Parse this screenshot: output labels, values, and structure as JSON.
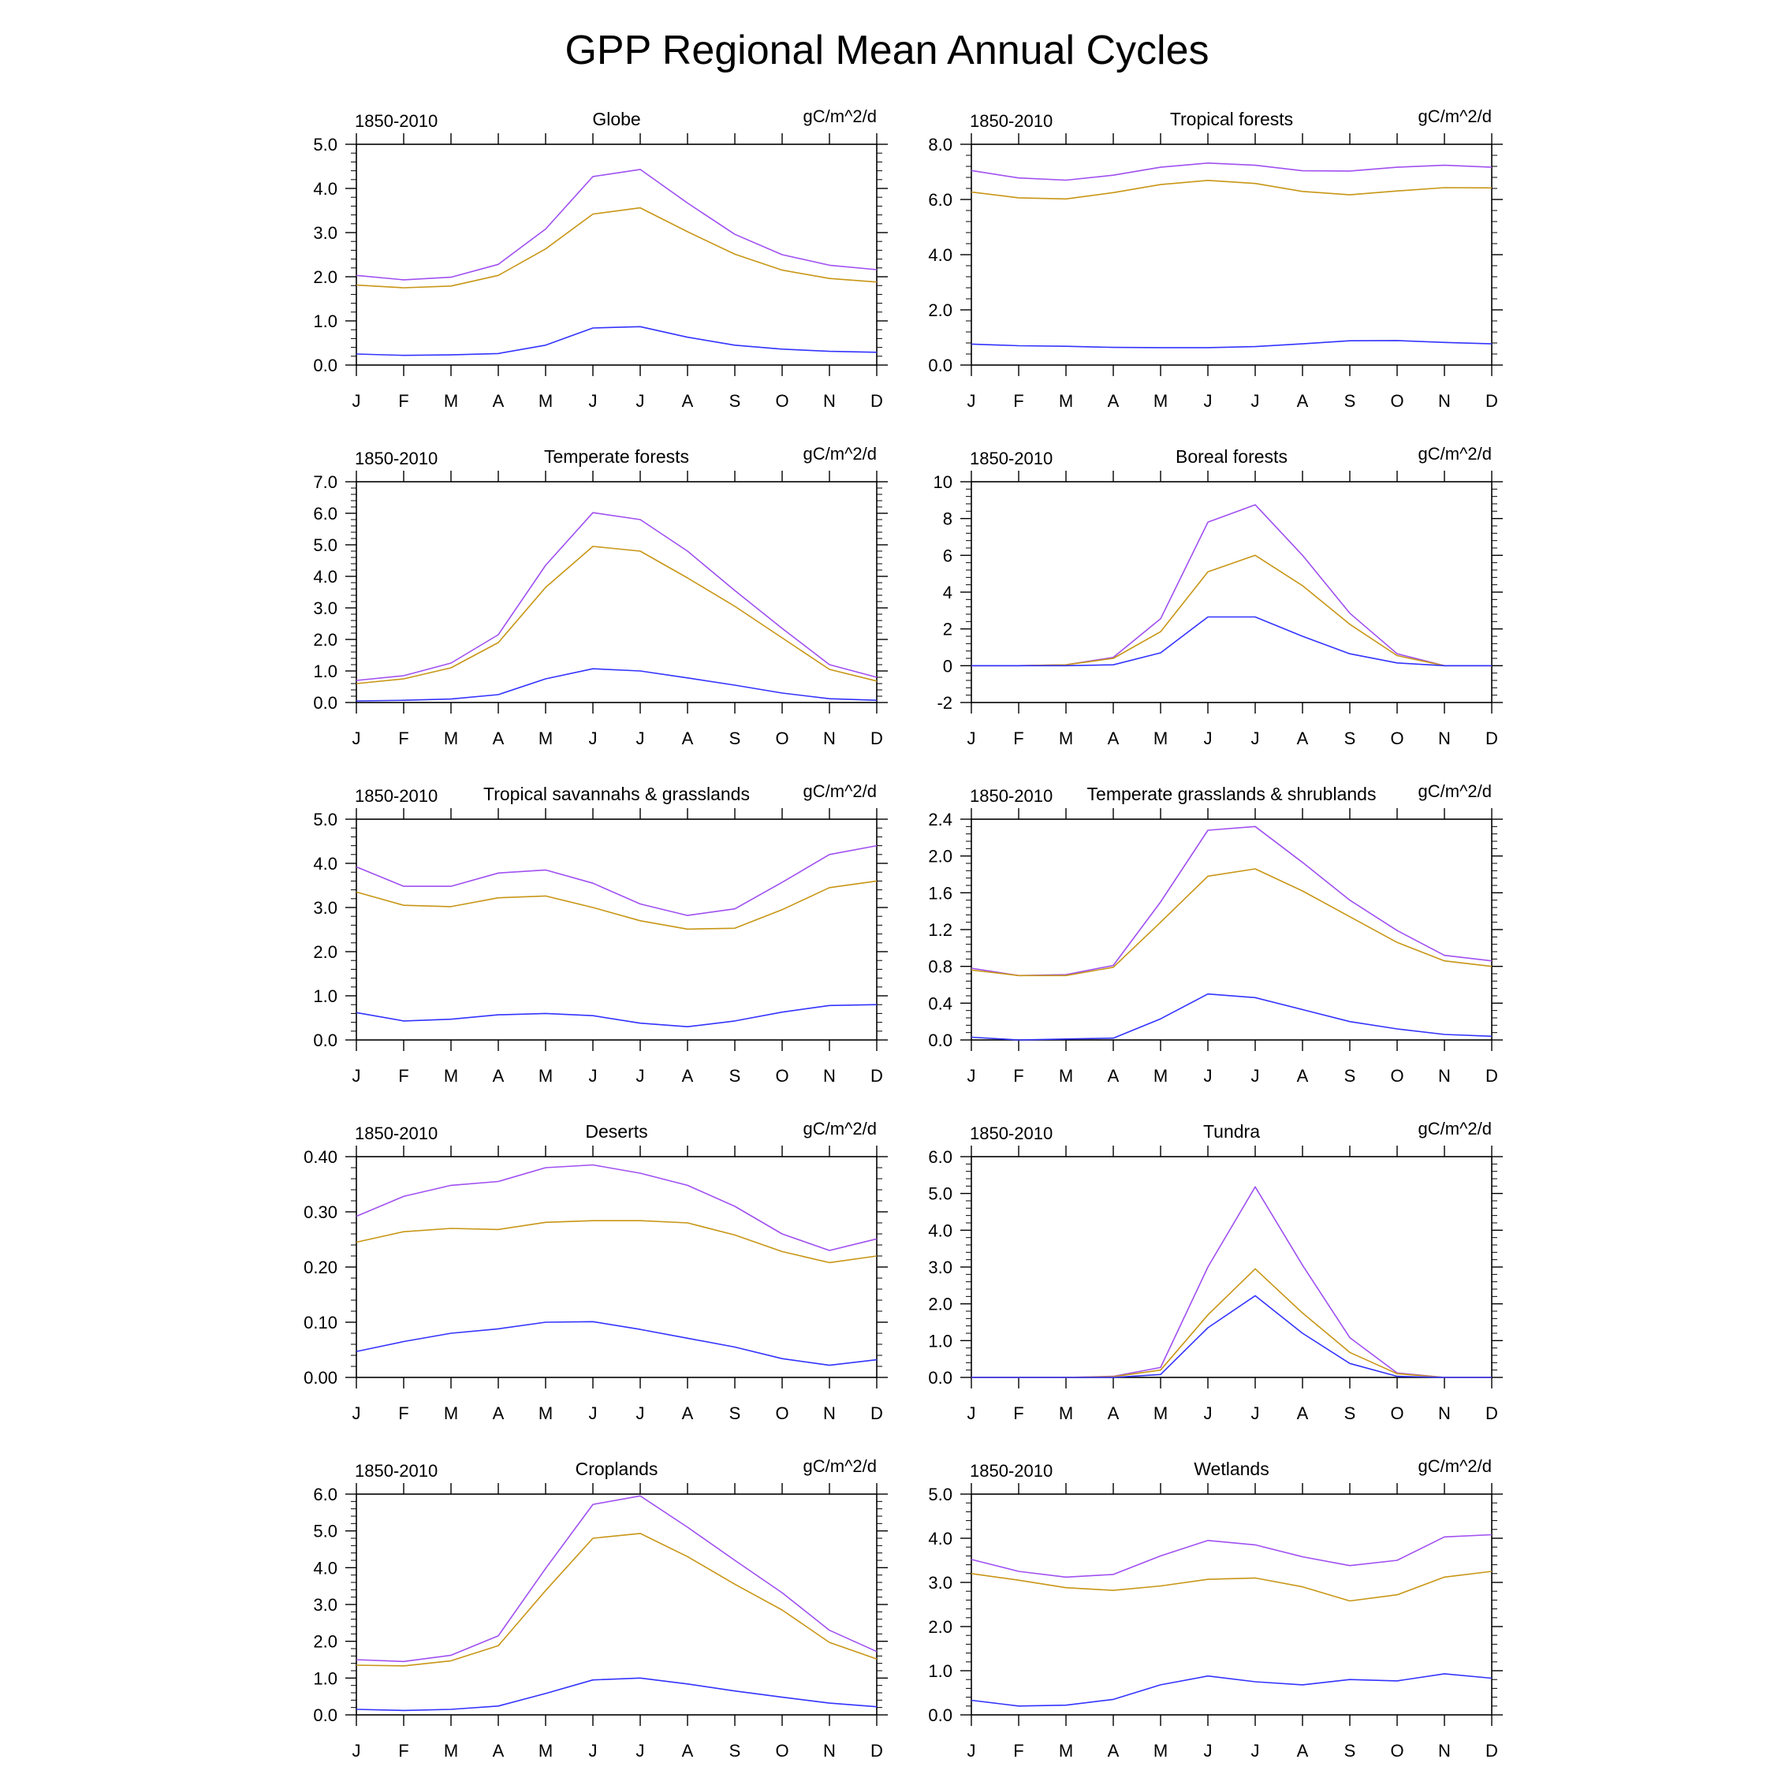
{
  "title": "GPP Regional Mean Annual Cycles",
  "colors": {
    "series_purple": "#a050f0",
    "series_gold": "#c89616",
    "series_blue": "#3333ff",
    "axis": "#000000"
  },
  "chart_data": [
    {
      "type": "line",
      "title": "Globe",
      "left_label": "1850-2010",
      "units": "gC/m^2/d",
      "categories": [
        "J",
        "F",
        "M",
        "A",
        "M",
        "J",
        "J",
        "A",
        "S",
        "O",
        "N",
        "D"
      ],
      "ylim": [
        0,
        5
      ],
      "yticks": [
        0,
        1,
        2,
        3,
        4,
        5
      ],
      "ytick_labels": [
        "0.0",
        "1.0",
        "2.0",
        "3.0",
        "4.0",
        "5.0"
      ],
      "series": [
        {
          "values": [
            2.03,
            1.93,
            1.99,
            2.28,
            3.08,
            4.27,
            4.43,
            3.67,
            2.96,
            2.5,
            2.26,
            2.16
          ]
        },
        {
          "values": [
            1.81,
            1.75,
            1.79,
            2.03,
            2.63,
            3.42,
            3.56,
            3.02,
            2.51,
            2.15,
            1.96,
            1.88
          ]
        },
        {
          "values": [
            0.25,
            0.22,
            0.23,
            0.26,
            0.45,
            0.84,
            0.87,
            0.63,
            0.45,
            0.36,
            0.31,
            0.29
          ]
        }
      ]
    },
    {
      "type": "line",
      "title": "Tropical forests",
      "left_label": "1850-2010",
      "units": "gC/m^2/d",
      "categories": [
        "J",
        "F",
        "M",
        "A",
        "M",
        "J",
        "J",
        "A",
        "S",
        "O",
        "N",
        "D"
      ],
      "ylim": [
        0,
        8
      ],
      "yticks": [
        0,
        2,
        4,
        6,
        8
      ],
      "ytick_labels": [
        "0.0",
        "2.0",
        "4.0",
        "6.0",
        "8.0"
      ],
      "series": [
        {
          "values": [
            7.05,
            6.78,
            6.7,
            6.88,
            7.17,
            7.32,
            7.24,
            7.04,
            7.03,
            7.17,
            7.24,
            7.17
          ]
        },
        {
          "values": [
            6.27,
            6.06,
            6.02,
            6.25,
            6.54,
            6.69,
            6.58,
            6.29,
            6.17,
            6.31,
            6.43,
            6.42
          ]
        },
        {
          "values": [
            0.76,
            0.7,
            0.68,
            0.64,
            0.63,
            0.63,
            0.67,
            0.77,
            0.88,
            0.89,
            0.82,
            0.77
          ]
        }
      ]
    },
    {
      "type": "line",
      "title": "Temperate forests",
      "left_label": "1850-2010",
      "units": "gC/m^2/d",
      "categories": [
        "J",
        "F",
        "M",
        "A",
        "M",
        "J",
        "J",
        "A",
        "S",
        "O",
        "N",
        "D"
      ],
      "ylim": [
        0,
        7
      ],
      "yticks": [
        0,
        1,
        2,
        3,
        4,
        5,
        6,
        7
      ],
      "ytick_labels": [
        "0.0",
        "1.0",
        "2.0",
        "3.0",
        "4.0",
        "5.0",
        "6.0",
        "7.0"
      ],
      "series": [
        {
          "values": [
            0.7,
            0.85,
            1.25,
            2.15,
            4.35,
            6.02,
            5.8,
            4.8,
            3.55,
            2.35,
            1.2,
            0.8
          ]
        },
        {
          "values": [
            0.6,
            0.75,
            1.1,
            1.9,
            3.65,
            4.95,
            4.8,
            3.95,
            3.05,
            2.05,
            1.05,
            0.68
          ]
        },
        {
          "values": [
            0.05,
            0.07,
            0.11,
            0.25,
            0.75,
            1.07,
            1.0,
            0.78,
            0.55,
            0.3,
            0.12,
            0.07
          ]
        }
      ]
    },
    {
      "type": "line",
      "title": "Boreal forests",
      "left_label": "1850-2010",
      "units": "gC/m^2/d",
      "categories": [
        "J",
        "F",
        "M",
        "A",
        "M",
        "J",
        "J",
        "A",
        "S",
        "O",
        "N",
        "D"
      ],
      "ylim": [
        -2,
        10
      ],
      "yticks": [
        -2,
        0,
        2,
        4,
        6,
        8,
        10
      ],
      "ytick_labels": [
        "-2",
        "0",
        "2",
        "4",
        "6",
        "8",
        "10"
      ],
      "series": [
        {
          "values": [
            0.0,
            0.0,
            0.05,
            0.45,
            2.55,
            7.8,
            8.75,
            6.0,
            2.85,
            0.65,
            0.0,
            0.0
          ]
        },
        {
          "values": [
            0.0,
            0.0,
            0.05,
            0.4,
            1.85,
            5.1,
            6.0,
            4.35,
            2.25,
            0.55,
            0.0,
            0.0
          ]
        },
        {
          "values": [
            0.0,
            0.0,
            0.0,
            0.05,
            0.7,
            2.65,
            2.65,
            1.6,
            0.65,
            0.15,
            0.0,
            0.0
          ]
        }
      ]
    },
    {
      "type": "line",
      "title": "Tropical savannahs & grasslands",
      "left_label": "1850-2010",
      "units": "gC/m^2/d",
      "categories": [
        "J",
        "F",
        "M",
        "A",
        "M",
        "J",
        "J",
        "A",
        "S",
        "O",
        "N",
        "D"
      ],
      "ylim": [
        0,
        5
      ],
      "yticks": [
        0,
        1,
        2,
        3,
        4,
        5
      ],
      "ytick_labels": [
        "0.0",
        "1.0",
        "2.0",
        "3.0",
        "4.0",
        "5.0"
      ],
      "series": [
        {
          "values": [
            3.92,
            3.48,
            3.48,
            3.78,
            3.85,
            3.55,
            3.08,
            2.82,
            2.97,
            3.57,
            4.2,
            4.4
          ]
        },
        {
          "values": [
            3.35,
            3.05,
            3.02,
            3.22,
            3.26,
            3.0,
            2.7,
            2.51,
            2.53,
            2.95,
            3.45,
            3.6
          ]
        },
        {
          "values": [
            0.62,
            0.43,
            0.47,
            0.57,
            0.6,
            0.55,
            0.38,
            0.3,
            0.43,
            0.63,
            0.78,
            0.8
          ]
        }
      ]
    },
    {
      "type": "line",
      "title": "Temperate grasslands & shrublands",
      "left_label": "1850-2010",
      "units": "gC/m^2/d",
      "categories": [
        "J",
        "F",
        "M",
        "A",
        "M",
        "J",
        "J",
        "A",
        "S",
        "O",
        "N",
        "D"
      ],
      "ylim": [
        0,
        2.4
      ],
      "yticks": [
        0,
        0.4,
        0.8,
        1.2,
        1.6,
        2.0,
        2.4
      ],
      "ytick_labels": [
        "0.0",
        "0.4",
        "0.8",
        "1.2",
        "1.6",
        "2.0",
        "2.4"
      ],
      "series": [
        {
          "values": [
            0.78,
            0.7,
            0.71,
            0.81,
            1.5,
            2.28,
            2.32,
            1.93,
            1.52,
            1.19,
            0.92,
            0.86
          ]
        },
        {
          "values": [
            0.76,
            0.7,
            0.7,
            0.79,
            1.28,
            1.78,
            1.86,
            1.62,
            1.34,
            1.06,
            0.86,
            0.8
          ]
        },
        {
          "values": [
            0.03,
            0.0,
            0.01,
            0.02,
            0.23,
            0.5,
            0.46,
            0.33,
            0.2,
            0.12,
            0.06,
            0.04
          ]
        }
      ]
    },
    {
      "type": "line",
      "title": "Deserts",
      "left_label": "1850-2010",
      "units": "gC/m^2/d",
      "categories": [
        "J",
        "F",
        "M",
        "A",
        "M",
        "J",
        "J",
        "A",
        "S",
        "O",
        "N",
        "D"
      ],
      "ylim": [
        0,
        0.4
      ],
      "yticks": [
        0,
        0.1,
        0.2,
        0.3,
        0.4
      ],
      "ytick_labels": [
        "0.00",
        "0.10",
        "0.20",
        "0.30",
        "0.40"
      ],
      "series": [
        {
          "values": [
            0.292,
            0.328,
            0.348,
            0.355,
            0.38,
            0.385,
            0.37,
            0.348,
            0.31,
            0.26,
            0.23,
            0.251
          ]
        },
        {
          "values": [
            0.245,
            0.264,
            0.27,
            0.268,
            0.281,
            0.284,
            0.284,
            0.28,
            0.258,
            0.228,
            0.208,
            0.22
          ]
        },
        {
          "values": [
            0.047,
            0.065,
            0.08,
            0.088,
            0.1,
            0.101,
            0.087,
            0.071,
            0.055,
            0.034,
            0.022,
            0.032
          ]
        }
      ]
    },
    {
      "type": "line",
      "title": "Tundra",
      "left_label": "1850-2010",
      "units": "gC/m^2/d",
      "categories": [
        "J",
        "F",
        "M",
        "A",
        "M",
        "J",
        "J",
        "A",
        "S",
        "O",
        "N",
        "D"
      ],
      "ylim": [
        0,
        6
      ],
      "yticks": [
        0,
        1,
        2,
        3,
        4,
        5,
        6
      ],
      "ytick_labels": [
        "0.0",
        "1.0",
        "2.0",
        "3.0",
        "4.0",
        "5.0",
        "6.0"
      ],
      "series": [
        {
          "values": [
            0.0,
            0.0,
            0.0,
            0.03,
            0.27,
            3.0,
            5.18,
            3.05,
            1.08,
            0.12,
            0.0,
            0.0
          ]
        },
        {
          "values": [
            0.0,
            0.0,
            0.0,
            0.02,
            0.2,
            1.7,
            2.95,
            1.75,
            0.68,
            0.1,
            0.0,
            0.0
          ]
        },
        {
          "values": [
            0.0,
            0.0,
            0.0,
            0.0,
            0.08,
            1.35,
            2.22,
            1.2,
            0.38,
            0.03,
            0.0,
            0.0
          ]
        }
      ]
    },
    {
      "type": "line",
      "title": "Croplands",
      "left_label": "1850-2010",
      "units": "gC/m^2/d",
      "categories": [
        "J",
        "F",
        "M",
        "A",
        "M",
        "J",
        "J",
        "A",
        "S",
        "O",
        "N",
        "D"
      ],
      "ylim": [
        0,
        6
      ],
      "yticks": [
        0,
        1,
        2,
        3,
        4,
        5,
        6
      ],
      "ytick_labels": [
        "0.0",
        "1.0",
        "2.0",
        "3.0",
        "4.0",
        "5.0",
        "6.0"
      ],
      "series": [
        {
          "values": [
            1.5,
            1.45,
            1.62,
            2.15,
            3.98,
            5.72,
            5.95,
            5.1,
            4.2,
            3.32,
            2.3,
            1.72
          ]
        },
        {
          "values": [
            1.35,
            1.33,
            1.47,
            1.88,
            3.38,
            4.8,
            4.93,
            4.3,
            3.55,
            2.85,
            1.97,
            1.52
          ]
        },
        {
          "values": [
            0.15,
            0.12,
            0.15,
            0.24,
            0.58,
            0.95,
            1.0,
            0.84,
            0.65,
            0.48,
            0.32,
            0.22
          ]
        }
      ]
    },
    {
      "type": "line",
      "title": "Wetlands",
      "left_label": "1850-2010",
      "units": "gC/m^2/d",
      "categories": [
        "J",
        "F",
        "M",
        "A",
        "M",
        "J",
        "J",
        "A",
        "S",
        "O",
        "N",
        "D"
      ],
      "ylim": [
        0,
        5
      ],
      "yticks": [
        0,
        1,
        2,
        3,
        4,
        5
      ],
      "ytick_labels": [
        "0.0",
        "1.0",
        "2.0",
        "3.0",
        "4.0",
        "5.0"
      ],
      "series": [
        {
          "values": [
            3.52,
            3.25,
            3.12,
            3.18,
            3.6,
            3.95,
            3.85,
            3.58,
            3.38,
            3.5,
            4.03,
            4.08
          ]
        },
        {
          "values": [
            3.2,
            3.05,
            2.88,
            2.82,
            2.92,
            3.07,
            3.1,
            2.9,
            2.58,
            2.72,
            3.12,
            3.25
          ]
        },
        {
          "values": [
            0.33,
            0.2,
            0.22,
            0.35,
            0.68,
            0.88,
            0.75,
            0.68,
            0.8,
            0.77,
            0.93,
            0.83
          ]
        }
      ]
    }
  ]
}
